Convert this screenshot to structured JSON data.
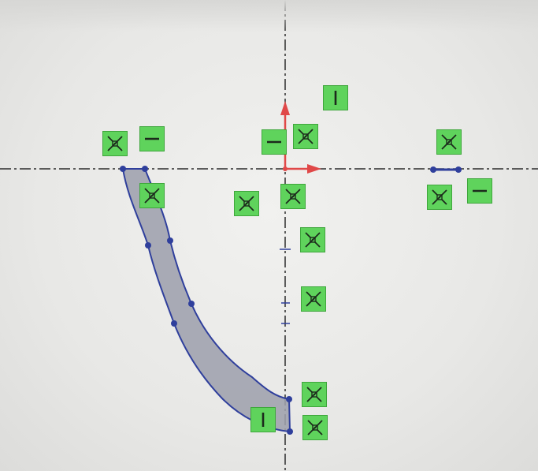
{
  "app": {
    "view": "sketch"
  },
  "colors": {
    "background": "#ebebea",
    "centerline": "#2c2c2c",
    "profile_edge": "#2f3f9c",
    "profile_fill": "#9ea0ad",
    "origin_axis": "#e04848",
    "relation_fill": "#5fd35c",
    "relation_border": "#3fa63c",
    "relation_mark": "#1c2a1c"
  },
  "relations": [
    {
      "name": "coincident-relation-left-top",
      "icon": "coincident-icon"
    },
    {
      "name": "horizontal-relation-left-top",
      "icon": "horizontal-icon"
    },
    {
      "name": "coincident-relation-left-below",
      "icon": "coincident-icon"
    },
    {
      "name": "vertical-relation-top",
      "icon": "vertical-icon"
    },
    {
      "name": "horizontal-relation-origin",
      "icon": "horizontal-icon"
    },
    {
      "name": "coincident-relation-origin-a",
      "icon": "coincident-icon"
    },
    {
      "name": "coincident-relation-origin-b",
      "icon": "coincident-icon"
    },
    {
      "name": "coincident-relation-origin-c",
      "icon": "coincident-icon"
    },
    {
      "name": "coincident-relation-axis-1",
      "icon": "coincident-icon"
    },
    {
      "name": "coincident-relation-axis-2",
      "icon": "coincident-icon"
    },
    {
      "name": "coincident-relation-bottom-1",
      "icon": "coincident-icon"
    },
    {
      "name": "coincident-relation-bottom-2",
      "icon": "coincident-icon"
    },
    {
      "name": "vertical-relation-bottom",
      "icon": "vertical-icon"
    },
    {
      "name": "coincident-relation-right-top",
      "icon": "coincident-icon"
    },
    {
      "name": "coincident-relation-right-below",
      "icon": "coincident-icon"
    },
    {
      "name": "horizontal-relation-right",
      "icon": "horizontal-icon"
    }
  ]
}
